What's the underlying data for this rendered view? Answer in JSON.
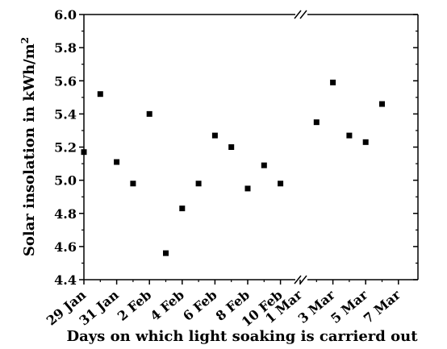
{
  "chart_data": {
    "type": "scatter",
    "ylabel_base": "Solar insolation in kWh/m",
    "ylabel_sup": "2",
    "xlabel": "Days on which light soaking is carrierd out",
    "ylim": [
      4.4,
      6.0
    ],
    "yticks": [
      "4.4",
      "4.6",
      "4.8",
      "5.0",
      "5.2",
      "5.4",
      "5.6",
      "5.8",
      "6.0"
    ],
    "axis_break": "//",
    "segments": [
      {
        "ticks": [
          "29 Jan",
          "31 Jan",
          "2 Feb",
          "4 Feb",
          "6 Feb",
          "8 Feb",
          "10 Feb"
        ],
        "points": [
          {
            "x": "29 Jan",
            "y": 5.17
          },
          {
            "x": "30 Jan",
            "y": 5.52
          },
          {
            "x": "31 Jan",
            "y": 5.11
          },
          {
            "x": "1 Feb",
            "y": 4.98
          },
          {
            "x": "2 Feb",
            "y": 5.4
          },
          {
            "x": "3 Feb",
            "y": 4.56
          },
          {
            "x": "4 Feb",
            "y": 4.83
          },
          {
            "x": "5 Feb",
            "y": 4.98
          },
          {
            "x": "6 Feb",
            "y": 5.27
          },
          {
            "x": "7 Feb",
            "y": 5.2
          },
          {
            "x": "8 Feb",
            "y": 4.95
          },
          {
            "x": "9 Feb",
            "y": 5.09
          },
          {
            "x": "10 Feb",
            "y": 4.98
          }
        ]
      },
      {
        "ticks": [
          "1 Mar",
          "3 Mar",
          "5 Mar",
          "7 Mar"
        ],
        "points": [
          {
            "x": "2 Mar",
            "y": 5.35
          },
          {
            "x": "3 Mar",
            "y": 5.59
          },
          {
            "x": "4 Mar",
            "y": 5.27
          },
          {
            "x": "5 Mar",
            "y": 5.23
          },
          {
            "x": "6 Mar",
            "y": 5.46
          }
        ]
      }
    ],
    "marker": "filled-square",
    "marker_color": "#000000",
    "grid": false
  }
}
